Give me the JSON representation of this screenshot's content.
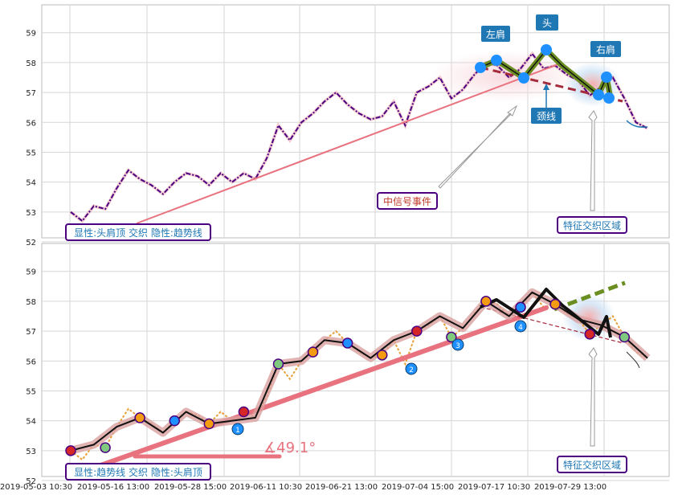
{
  "colors": {
    "price_line": "#4b0082",
    "trend_line": "#e8737f",
    "pattern_fill": "#6b8e23",
    "pivot_blue": "#1e90ff",
    "badge_fill": "#1f77b4",
    "box_border": "#4b0082",
    "label_text": "#1f77b4",
    "event_text": "#c0392b",
    "neckline": "#a52a3a",
    "wave_fill": "#c9a0dc",
    "orange_price": "#e8a13a"
  },
  "chart_data": [
    {
      "type": "line",
      "panel": "top",
      "ylim": [
        52,
        59.8
      ],
      "yticks": [
        "52",
        "53",
        "54",
        "55",
        "56",
        "57",
        "58",
        "59"
      ],
      "grid": true,
      "x": [
        0,
        2,
        4,
        6,
        8,
        10,
        12,
        14,
        16,
        18,
        20,
        22,
        24,
        26,
        28,
        30,
        32,
        34,
        36,
        38,
        40,
        42,
        44,
        46,
        48,
        50,
        52,
        54,
        56,
        58,
        60,
        62,
        64,
        66,
        68,
        70,
        72,
        74,
        76,
        78,
        80,
        82,
        84,
        86,
        88,
        90,
        92,
        94,
        96,
        98,
        100
      ],
      "series": [
        {
          "values": [
            53.0,
            52.7,
            53.2,
            53.1,
            53.8,
            54.4,
            54.1,
            53.9,
            53.6,
            54.0,
            54.3,
            54.2,
            53.9,
            54.3,
            54.0,
            54.3,
            54.1,
            54.8,
            55.9,
            55.4,
            56.0,
            56.3,
            56.7,
            57.0,
            56.6,
            56.3,
            56.1,
            56.2,
            56.7,
            55.9,
            57.0,
            57.2,
            57.5,
            56.8,
            57.1,
            57.6,
            58.0,
            57.9,
            57.5,
            57.8,
            58.3,
            57.8,
            57.9,
            57.6,
            57.4,
            56.9,
            57.2,
            57.5,
            56.8,
            56.0,
            55.8
          ]
        }
      ],
      "annotations": [
        "左肩",
        "头",
        "右肩",
        "颈线",
        "中信号事件",
        "特征交织区域"
      ],
      "legend_box": "显性:头肩顶 交织 隐性:趋势线"
    },
    {
      "type": "line",
      "panel": "bottom",
      "ylim": [
        52,
        59.8
      ],
      "yticks": [
        "52",
        "53",
        "54",
        "55",
        "56",
        "57",
        "58",
        "59"
      ],
      "grid": true,
      "x": [
        0,
        2,
        4,
        6,
        8,
        10,
        12,
        14,
        16,
        18,
        20,
        22,
        24,
        26,
        28,
        30,
        32,
        34,
        36,
        38,
        40,
        42,
        44,
        46,
        48,
        50,
        52,
        54,
        56,
        58,
        60,
        62,
        64,
        66,
        68,
        70,
        72,
        74,
        76,
        78,
        80,
        82,
        84,
        86,
        88,
        90,
        92,
        94,
        96,
        98,
        100
      ],
      "series": [
        {
          "values": [
            53.0,
            52.7,
            53.2,
            53.1,
            53.8,
            54.4,
            54.1,
            53.9,
            53.6,
            54.0,
            54.3,
            54.2,
            53.9,
            54.3,
            54.0,
            54.3,
            54.1,
            54.8,
            55.9,
            55.4,
            56.0,
            56.3,
            56.7,
            57.0,
            56.6,
            56.3,
            56.1,
            56.2,
            56.7,
            55.9,
            57.0,
            57.2,
            57.5,
            56.8,
            57.1,
            57.6,
            58.0,
            57.9,
            57.5,
            57.8,
            58.3,
            57.8,
            57.9,
            57.6,
            57.4,
            56.9,
            57.2,
            57.5,
            56.8,
            56.3,
            56.1
          ]
        }
      ],
      "angle_label": "∡49.1°",
      "wave_numbers": [
        "1",
        "2",
        "3",
        "4"
      ],
      "legend_box": "显性:趋势线 交织 隐性:头肩顶",
      "annotation": "特征交织区域"
    }
  ],
  "x_axis": {
    "ticks": [
      "2019-05-03 10:30",
      "2019-05-16 13:00",
      "2019-05-28 15:00",
      "2019-06-11 10:30",
      "2019-06-21 13:00",
      "2019-07-04 15:00",
      "2019-07-17 10:30",
      "2019-07-29 13:00"
    ]
  }
}
